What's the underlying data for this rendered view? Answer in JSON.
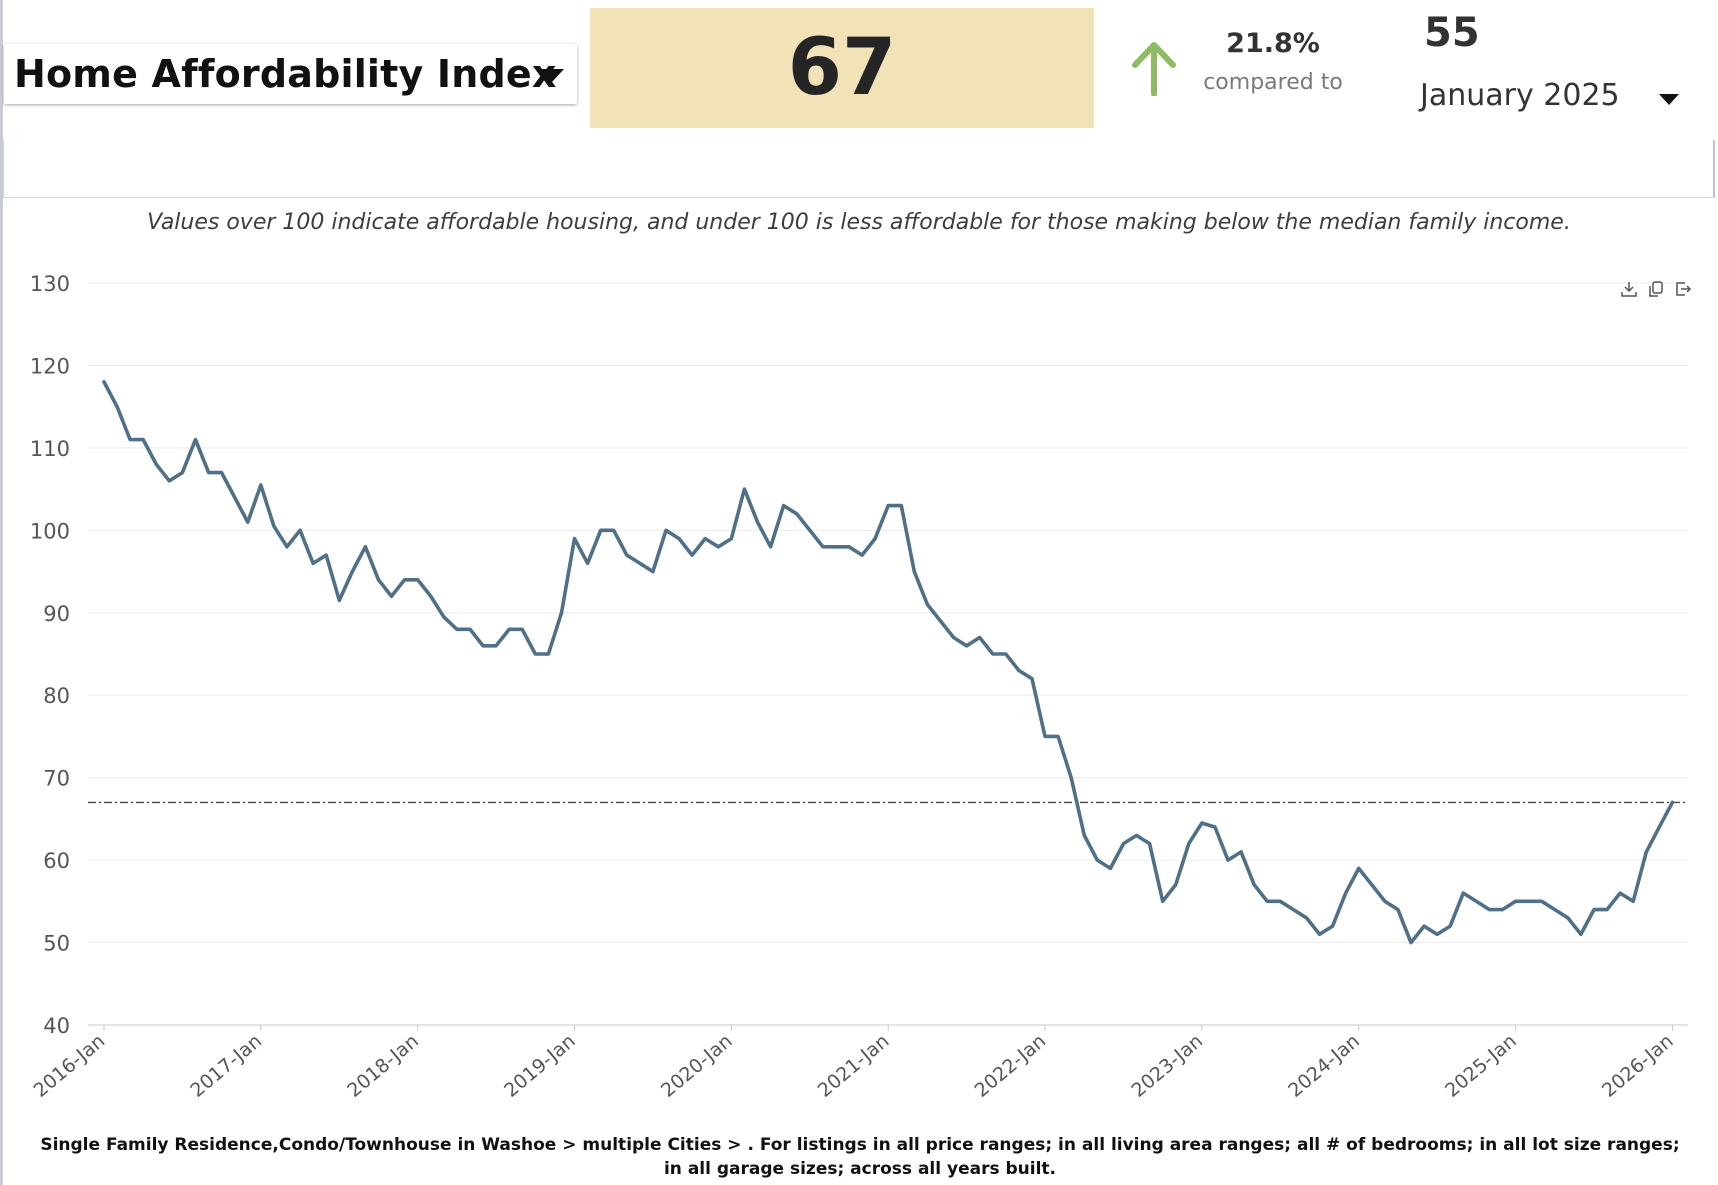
{
  "header": {
    "metric_label": "Home Affordability Index",
    "current_value": "67",
    "change_pct": "21.8%",
    "compared_to_label": "compared to",
    "previous_value": "55",
    "period_label": "January 2025"
  },
  "subtitle": "Values over 100 indicate affordable housing, and under 100 is less affordable for those making below the median family income.",
  "footnote": "Single Family Residence,Condo/Townhouse in Washoe > multiple Cities > . For listings in all price ranges; in all living area ranges; all # of bedrooms; in all lot size ranges; in all garage sizes; across all years built.",
  "colors": {
    "line": "#4f7087",
    "value_bg": "#f1e2b8",
    "arrow": "#8fbc62",
    "reference_line": "#444444",
    "grid": "#ececec"
  },
  "toolbar": {
    "icons": [
      "download-icon",
      "copy-icon",
      "export-icon"
    ]
  },
  "chart_data": {
    "type": "line",
    "title": "",
    "xlabel": "",
    "ylabel": "",
    "ylim": [
      40,
      130
    ],
    "yticks": [
      40,
      50,
      60,
      70,
      80,
      90,
      100,
      110,
      120,
      130
    ],
    "x_tick_labels": [
      "2016-Jan",
      "2017-Jan",
      "2018-Jan",
      "2019-Jan",
      "2020-Jan",
      "2021-Jan",
      "2022-Jan",
      "2023-Jan",
      "2024-Jan",
      "2025-Jan",
      "2026-Jan"
    ],
    "x_start": "2016-Jan",
    "x_interval": "month",
    "reference_line": {
      "value": 67,
      "style": "dash-dot"
    },
    "grid": true,
    "legend": "none",
    "series": [
      {
        "name": "Home Affordability Index",
        "values": [
          118,
          115,
          111,
          111,
          108,
          106,
          107,
          111,
          107,
          107,
          104,
          101,
          105.5,
          100.5,
          98,
          100,
          96,
          97,
          91.5,
          95,
          98,
          94,
          92,
          94,
          94,
          92,
          89.5,
          88,
          88,
          86,
          86,
          88,
          88,
          85,
          85,
          90,
          99,
          96,
          100,
          100,
          97,
          96,
          95,
          100,
          99,
          97,
          99,
          98,
          99,
          105,
          101,
          98,
          103,
          102,
          100,
          98,
          98,
          98,
          97,
          99,
          103,
          103,
          95,
          91,
          89,
          87,
          86,
          87,
          85,
          85,
          83,
          82,
          75,
          75,
          70,
          63,
          60,
          59,
          62,
          63,
          62,
          55,
          57,
          62,
          64.5,
          64,
          60,
          61,
          57,
          55,
          55,
          54,
          53,
          51,
          52,
          56,
          59,
          57,
          55,
          54,
          50,
          52,
          51,
          52,
          56,
          55,
          54,
          54,
          55,
          55,
          55,
          54,
          53,
          51,
          54,
          54,
          56,
          55,
          61,
          64,
          67
        ]
      }
    ]
  }
}
